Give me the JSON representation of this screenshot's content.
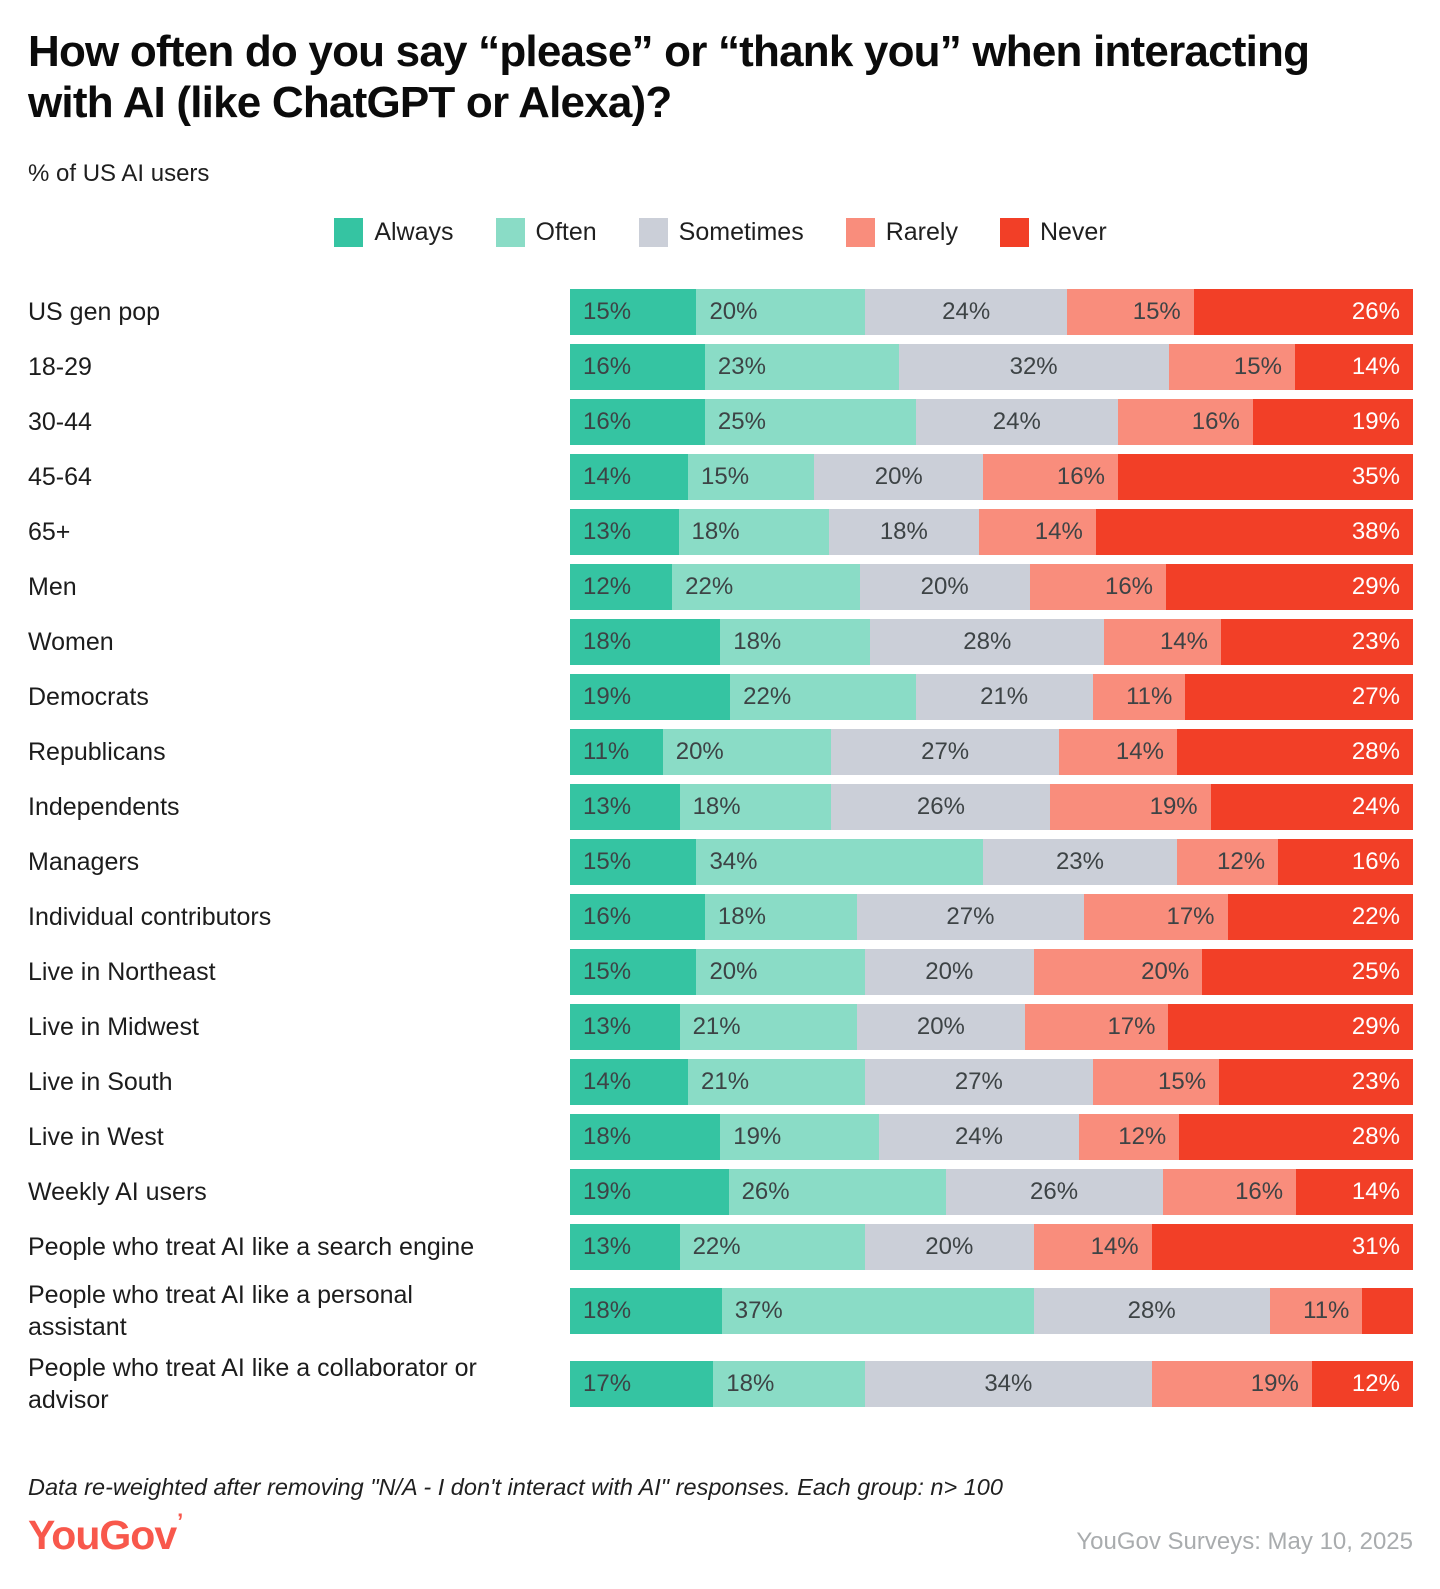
{
  "title": "How often do you say “please” or “thank you” when interacting with AI (like ChatGPT or Alexa)?",
  "subtitle": "% of US AI users",
  "footer": {
    "note": "Data re-weighted after removing \"N/A - I don't interact with AI\" responses. Each group: n> 100",
    "logo": "YouGov",
    "logo_mark": "’",
    "source": "YouGov Surveys: May 10, 2025"
  },
  "chart_data": {
    "type": "bar",
    "variant": "horizontal-stacked",
    "unit": "%",
    "xlim": [
      0,
      100
    ],
    "grid": false,
    "legend_position": "top-center",
    "legend": [
      "Always",
      "Often",
      "Sometimes",
      "Rarely",
      "Never"
    ],
    "colors": {
      "Always": "#35c4a2",
      "Often": "#8adcc6",
      "Sometimes": "#cbcfd8",
      "Rarely": "#f98d7c",
      "Never": "#f23f27"
    },
    "value_label_color": "#3d4345",
    "value_label_color_on_never": "#ffffff",
    "categories": [
      "US gen pop",
      "18-29",
      "30-44",
      "45-64",
      "65+",
      "Men",
      "Women",
      "Democrats",
      "Republicans",
      "Independents",
      "Managers",
      "Individual contributors",
      "Live in Northeast",
      "Live in Midwest",
      "Live in South",
      "Live in West",
      "Weekly AI users",
      "People who treat AI like a search engine",
      "People who treat AI like a personal\nassistant",
      "People who treat AI like a collaborator or\nadvisor"
    ],
    "series": [
      {
        "name": "Always",
        "values": [
          15,
          16,
          16,
          14,
          13,
          12,
          18,
          19,
          11,
          13,
          15,
          16,
          15,
          13,
          14,
          18,
          19,
          13,
          18,
          17
        ]
      },
      {
        "name": "Often",
        "values": [
          20,
          23,
          25,
          15,
          18,
          22,
          18,
          22,
          20,
          18,
          34,
          18,
          20,
          21,
          21,
          19,
          26,
          22,
          37,
          18
        ]
      },
      {
        "name": "Sometimes",
        "values": [
          24,
          32,
          24,
          20,
          18,
          20,
          28,
          21,
          27,
          26,
          23,
          27,
          20,
          20,
          27,
          24,
          26,
          20,
          28,
          34
        ]
      },
      {
        "name": "Rarely",
        "values": [
          15,
          15,
          16,
          16,
          14,
          16,
          14,
          11,
          14,
          19,
          12,
          17,
          20,
          17,
          15,
          12,
          16,
          14,
          11,
          19
        ]
      },
      {
        "name": "Never",
        "values": [
          26,
          14,
          19,
          35,
          38,
          29,
          23,
          27,
          28,
          24,
          16,
          22,
          25,
          29,
          23,
          28,
          14,
          31,
          6,
          12
        ]
      }
    ],
    "hidden_value_labels": [
      {
        "category": "People who treat AI like a personal assistant",
        "series": "Never"
      }
    ]
  }
}
